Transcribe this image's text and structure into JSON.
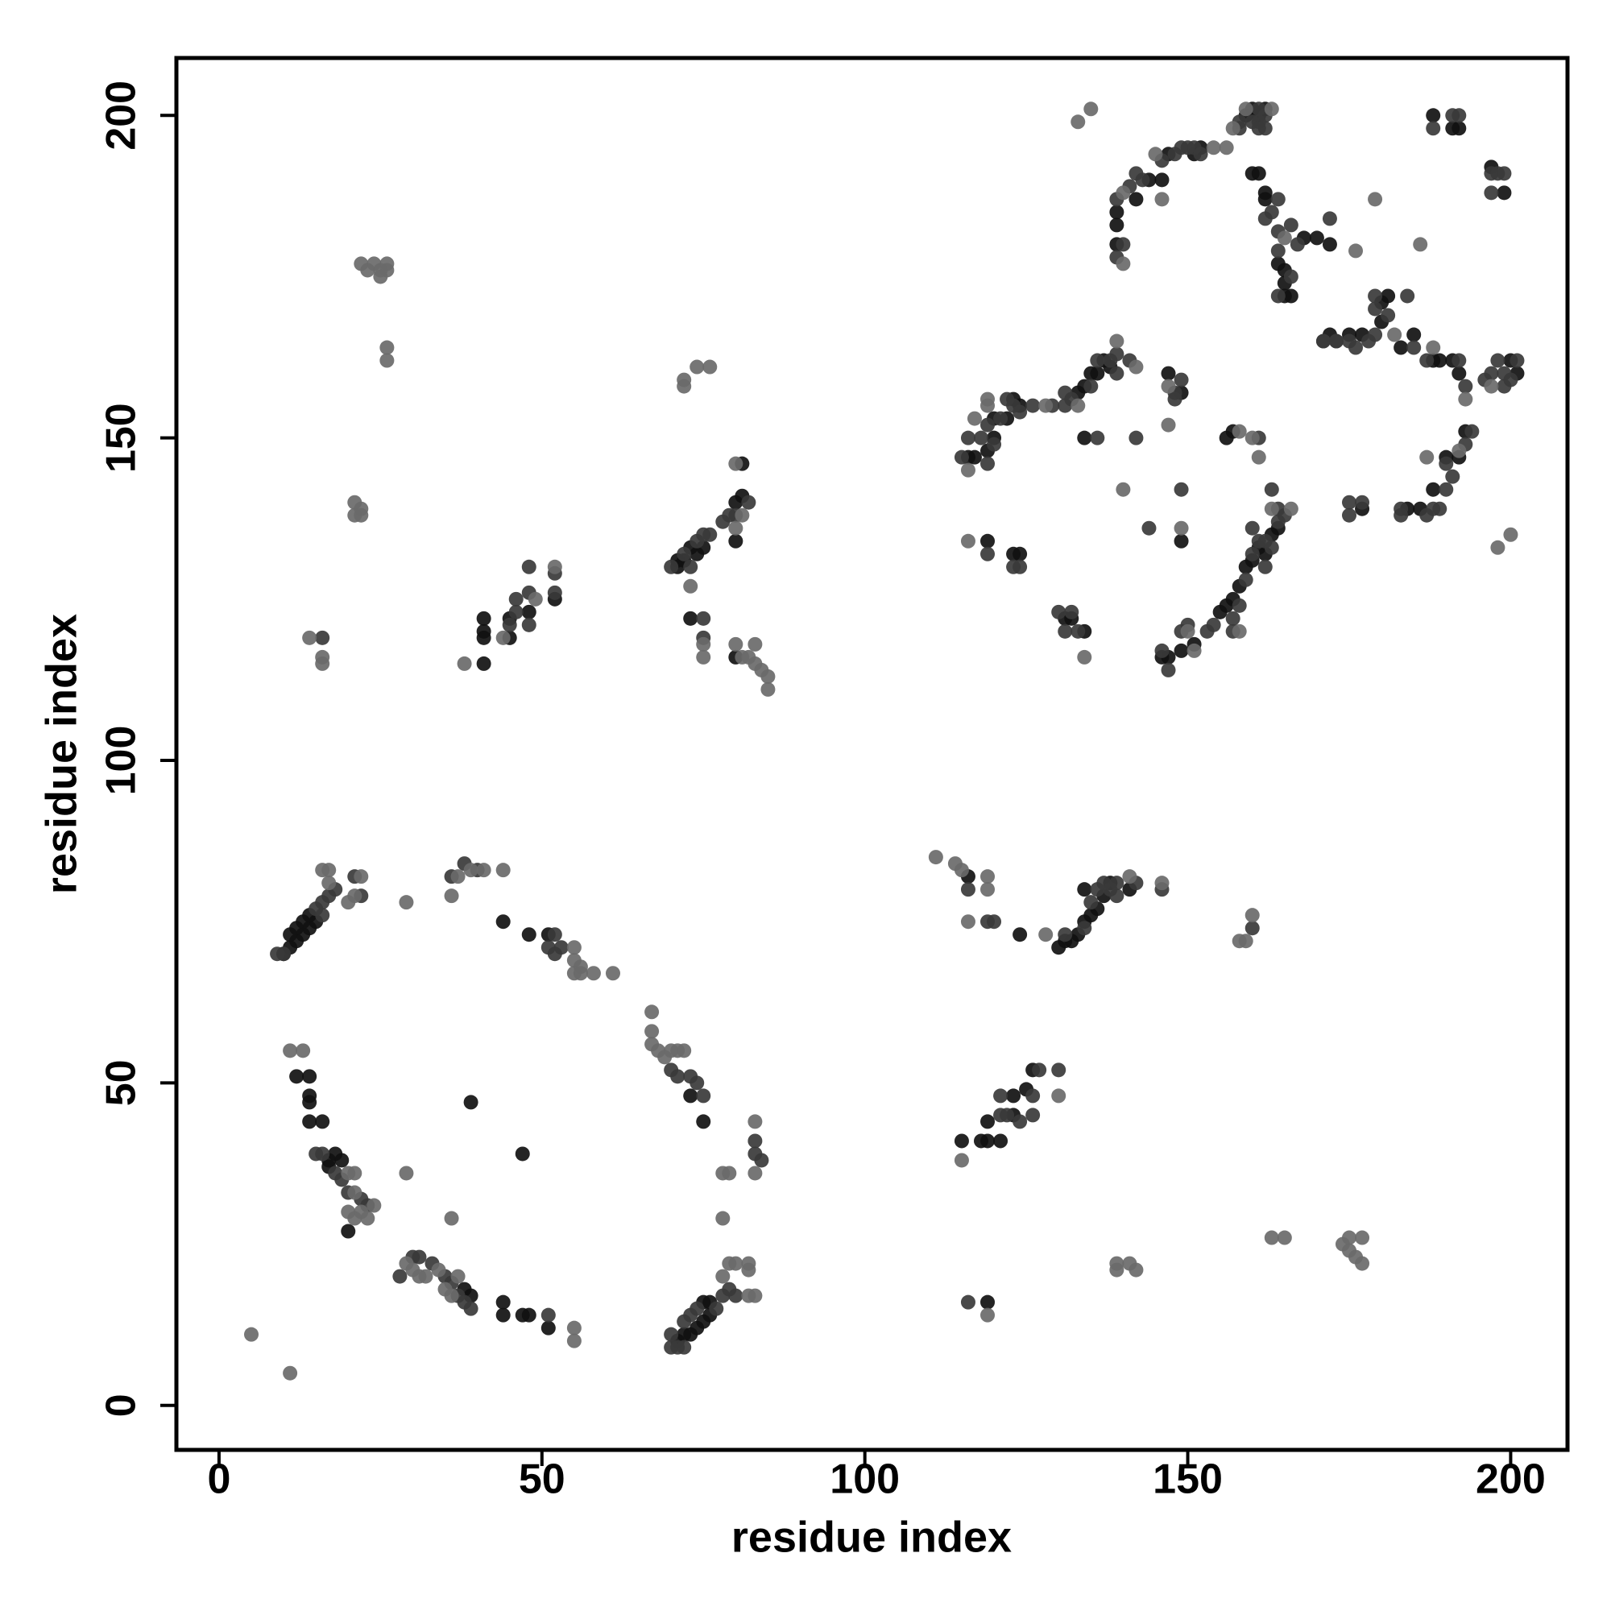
{
  "chart_data": {
    "type": "scatter",
    "xlabel": "residue index",
    "ylabel": "residue index",
    "xlim": [
      -6.6,
      208.8
    ],
    "ylim": [
      -6.9,
      208.9
    ],
    "xticks": [
      0,
      50,
      100,
      150,
      200
    ],
    "yticks": [
      0,
      50,
      100,
      150,
      200
    ],
    "grid": false,
    "series": [
      {
        "color": "#111111",
        "x": [
          10,
          11,
          12,
          13,
          14,
          15,
          12,
          13,
          14,
          11,
          12,
          14,
          14,
          14,
          14,
          16,
          17,
          17,
          18,
          19,
          20,
          39,
          47,
          38,
          39,
          44,
          44,
          47,
          48,
          51,
          48,
          51,
          44,
          73,
          75,
          71,
          72,
          73,
          74,
          75,
          75,
          76,
          76,
          41,
          41,
          41,
          41,
          45,
          45,
          48,
          52,
          71,
          72,
          73,
          74,
          75,
          71,
          80,
          81,
          81,
          80,
          73,
          80,
          116,
          124,
          130,
          131,
          132,
          133,
          134,
          135,
          136,
          137,
          138,
          134,
          141,
          115,
          118,
          119,
          121,
          119,
          123,
          123,
          126,
          125,
          119,
          159,
          160,
          161,
          162,
          160,
          161,
          162,
          162,
          164,
          165,
          165,
          165,
          166,
          168,
          170,
          172,
          139,
          139,
          139,
          142,
          144,
          146,
          147,
          151,
          152,
          188,
          191,
          192,
          197,
          199,
          172,
          175,
          177,
          180,
          181,
          180,
          183,
          185,
          188,
          189,
          191,
          192,
          193,
          192,
          190,
          188,
          184,
          186,
          177,
          134,
          135,
          136,
          137,
          133,
          138,
          122,
          120,
          123,
          124,
          119,
          120,
          116,
          117,
          134,
          149,
          147,
          149,
          123,
          124,
          119,
          131,
          132,
          134,
          146,
          147,
          149,
          151,
          155,
          156,
          157,
          158,
          159,
          160,
          161,
          162,
          163,
          164,
          157,
          156,
          201,
          200
        ],
        "y": [
          70,
          71,
          72,
          73,
          74,
          75,
          74,
          75,
          76,
          73,
          51,
          51,
          48,
          47,
          44,
          44,
          38,
          37,
          39,
          38,
          27,
          47,
          39,
          18,
          17,
          16,
          14,
          14,
          14,
          12,
          73,
          73,
          75,
          48,
          44,
          10,
          11,
          11,
          12,
          13,
          16,
          14,
          16,
          115,
          119,
          120,
          122,
          119,
          122,
          123,
          125,
          130,
          131,
          133,
          132,
          133,
          131,
          134,
          141,
          146,
          140,
          122,
          116,
          82,
          73,
          71,
          72,
          72,
          73,
          75,
          76,
          77,
          79,
          81,
          80,
          80,
          41,
          41,
          41,
          41,
          44,
          48,
          45,
          52,
          49,
          16,
          200,
          201,
          200,
          201,
          191,
          191,
          188,
          187,
          177,
          176,
          174,
          172,
          172,
          181,
          181,
          180,
          180,
          183,
          185,
          187,
          190,
          190,
          194,
          194,
          195,
          200,
          198,
          198,
          192,
          188,
          166,
          166,
          166,
          171,
          172,
          168,
          164,
          166,
          162,
          162,
          162,
          160,
          151,
          147,
          147,
          142,
          139,
          139,
          139,
          158,
          160,
          160,
          162,
          157,
          161,
          153,
          153,
          156,
          155,
          148,
          150,
          147,
          147,
          150,
          134,
          160,
          157,
          132,
          132,
          134,
          122,
          122,
          120,
          116,
          116,
          117,
          118,
          123,
          124,
          125,
          127,
          130,
          131,
          133,
          132,
          135,
          136,
          151,
          150,
          160,
          162
        ]
      },
      {
        "color": "#3a3a3a",
        "x": [
          9,
          10,
          15,
          16,
          16,
          17,
          21,
          22,
          18,
          38,
          40,
          36,
          52,
          51,
          52,
          53,
          70,
          71,
          73,
          74,
          75,
          15,
          16,
          18,
          19,
          20,
          22,
          23,
          28,
          30,
          31,
          33,
          35,
          36,
          37,
          38,
          39,
          51,
          70,
          70,
          71,
          72,
          72,
          73,
          74,
          77,
          78,
          79,
          80,
          83,
          83,
          84,
          45,
          46,
          46,
          48,
          48,
          48,
          52,
          52,
          70,
          72,
          73,
          74,
          75,
          76,
          78,
          79,
          80,
          82,
          75,
          75,
          16,
          116,
          119,
          120,
          131,
          134,
          135,
          136,
          137,
          138,
          139,
          139,
          142,
          146,
          160,
          121,
          122,
          121,
          124,
          126,
          127,
          130,
          126,
          116,
          158,
          158,
          160,
          161,
          161,
          162,
          162,
          161,
          140,
          139,
          139,
          141,
          142,
          143,
          146,
          148,
          149,
          150,
          151,
          152,
          162,
          163,
          164,
          164,
          164,
          166,
          164,
          167,
          166,
          171,
          173,
          172,
          188,
          191,
          192,
          197,
          198,
          197,
          199,
          171,
          173,
          175,
          176,
          178,
          179,
          179,
          179,
          181,
          184,
          185,
          187,
          192,
          193,
          196,
          197,
          199,
          201,
          199,
          198,
          200,
          183,
          183,
          187,
          188,
          189,
          190,
          191,
          194,
          193,
          190,
          175,
          175,
          177,
          135,
          136,
          138,
          139,
          139,
          141,
          132,
          131,
          131,
          129,
          126,
          123,
          122,
          124,
          121,
          119,
          118,
          116,
          115,
          119,
          120,
          148,
          148,
          149,
          136,
          142,
          144,
          149,
          119,
          123,
          124,
          130,
          132,
          133,
          131,
          146,
          147,
          149,
          150,
          153,
          154,
          157,
          157,
          158,
          159,
          160,
          161,
          162,
          163,
          164,
          165,
          164,
          163,
          161,
          160,
          162
        ],
        "y": [
          70,
          70,
          77,
          76,
          78,
          79,
          82,
          79,
          80,
          84,
          83,
          82,
          73,
          71,
          70,
          71,
          52,
          51,
          51,
          50,
          48,
          39,
          39,
          36,
          35,
          33,
          32,
          31,
          20,
          23,
          23,
          22,
          20,
          19,
          17,
          16,
          15,
          14,
          9,
          11,
          9,
          9,
          13,
          14,
          15,
          15,
          17,
          18,
          17,
          39,
          41,
          38,
          121,
          123,
          125,
          121,
          126,
          130,
          126,
          129,
          130,
          132,
          130,
          134,
          135,
          135,
          137,
          138,
          138,
          140,
          122,
          119,
          119,
          80,
          75,
          75,
          73,
          74,
          78,
          80,
          81,
          80,
          79,
          81,
          81,
          80,
          74,
          45,
          45,
          48,
          44,
          48,
          52,
          52,
          45,
          16,
          198,
          199,
          199,
          199,
          198,
          198,
          200,
          201,
          180,
          178,
          187,
          189,
          191,
          190,
          193,
          194,
          195,
          195,
          195,
          194,
          184,
          185,
          187,
          182,
          179,
          175,
          172,
          180,
          183,
          165,
          165,
          184,
          198,
          200,
          200,
          191,
          191,
          188,
          191,
          165,
          165,
          165,
          164,
          165,
          166,
          170,
          172,
          169,
          172,
          164,
          162,
          162,
          158,
          159,
          160,
          160,
          162,
          158,
          162,
          159,
          139,
          138,
          138,
          139,
          139,
          142,
          144,
          151,
          149,
          146,
          140,
          138,
          140,
          158,
          162,
          162,
          163,
          160,
          162,
          156,
          157,
          155,
          155,
          155,
          155,
          156,
          154,
          153,
          152,
          150,
          150,
          147,
          146,
          149,
          156,
          157,
          159,
          150,
          150,
          136,
          142,
          132,
          130,
          130,
          123,
          123,
          120,
          120,
          117,
          114,
          120,
          121,
          120,
          121,
          122,
          120,
          124,
          128,
          132,
          134,
          134,
          133,
          137,
          138,
          139,
          142,
          150,
          136,
          130
        ]
      },
      {
        "color": "#6a6a6a",
        "x": [
          16,
          17,
          22,
          21,
          20,
          17,
          29,
          37,
          39,
          41,
          36,
          44,
          55,
          55,
          56,
          55,
          56,
          58,
          61,
          67,
          67,
          67,
          68,
          69,
          70,
          71,
          72,
          11,
          13,
          20,
          21,
          21,
          24,
          20,
          22,
          23,
          21,
          29,
          36,
          78,
          29,
          30,
          31,
          32,
          34,
          37,
          35,
          36,
          55,
          55,
          5,
          11,
          78,
          79,
          80,
          82,
          82,
          82,
          83,
          78,
          79,
          83,
          83,
          24,
          22,
          23,
          25,
          26,
          26,
          25,
          26,
          26,
          21,
          22,
          21,
          22,
          14,
          16,
          16,
          38,
          44,
          49,
          52,
          80,
          81,
          80,
          73,
          75,
          75,
          81,
          80,
          83,
          82,
          83,
          84,
          85,
          85,
          72,
          72,
          74,
          76,
          111,
          114,
          115,
          119,
          119,
          116,
          128,
          141,
          146,
          158,
          159,
          160,
          115,
          130,
          119,
          139,
          139,
          141,
          142,
          163,
          165,
          174,
          175,
          175,
          176,
          177,
          177,
          133,
          135,
          154,
          156,
          157,
          159,
          163,
          140,
          140,
          145,
          146,
          165,
          176,
          186,
          179,
          182,
          188,
          193,
          197,
          198,
          200,
          192,
          187,
          133,
          128,
          119,
          119,
          117,
          116,
          147,
          142,
          139,
          140,
          149,
          147,
          116,
          134,
          150,
          151,
          158,
          161,
          160,
          158,
          166,
          163
        ],
        "y": [
          83,
          83,
          82,
          79,
          78,
          81,
          78,
          82,
          83,
          83,
          79,
          83,
          71,
          69,
          68,
          67,
          67,
          67,
          67,
          61,
          58,
          56,
          55,
          54,
          55,
          55,
          55,
          55,
          55,
          36,
          36,
          33,
          31,
          30,
          30,
          29,
          29,
          36,
          29,
          29,
          22,
          21,
          20,
          20,
          21,
          20,
          18,
          17,
          12,
          10,
          11,
          5,
          20,
          22,
          22,
          21,
          22,
          17,
          17,
          36,
          36,
          36,
          44,
          177,
          177,
          176,
          175,
          177,
          176,
          176,
          164,
          162,
          140,
          139,
          138,
          138,
          119,
          116,
          115,
          115,
          119,
          125,
          130,
          136,
          138,
          146,
          127,
          118,
          116,
          116,
          118,
          118,
          116,
          115,
          114,
          113,
          111,
          158,
          159,
          161,
          161,
          85,
          84,
          83,
          82,
          80,
          75,
          73,
          82,
          81,
          72,
          72,
          76,
          38,
          48,
          14,
          22,
          21,
          22,
          21,
          26,
          26,
          25,
          26,
          24,
          23,
          22,
          26,
          199,
          201,
          195,
          195,
          198,
          201,
          201,
          177,
          188,
          194,
          187,
          181,
          179,
          180,
          187,
          166,
          164,
          156,
          158,
          133,
          135,
          148,
          147,
          155,
          155,
          155,
          156,
          153,
          145,
          158,
          161,
          165,
          142,
          136,
          152,
          134,
          116,
          120,
          117,
          120,
          147,
          150,
          151,
          139,
          139
        ]
      }
    ]
  }
}
